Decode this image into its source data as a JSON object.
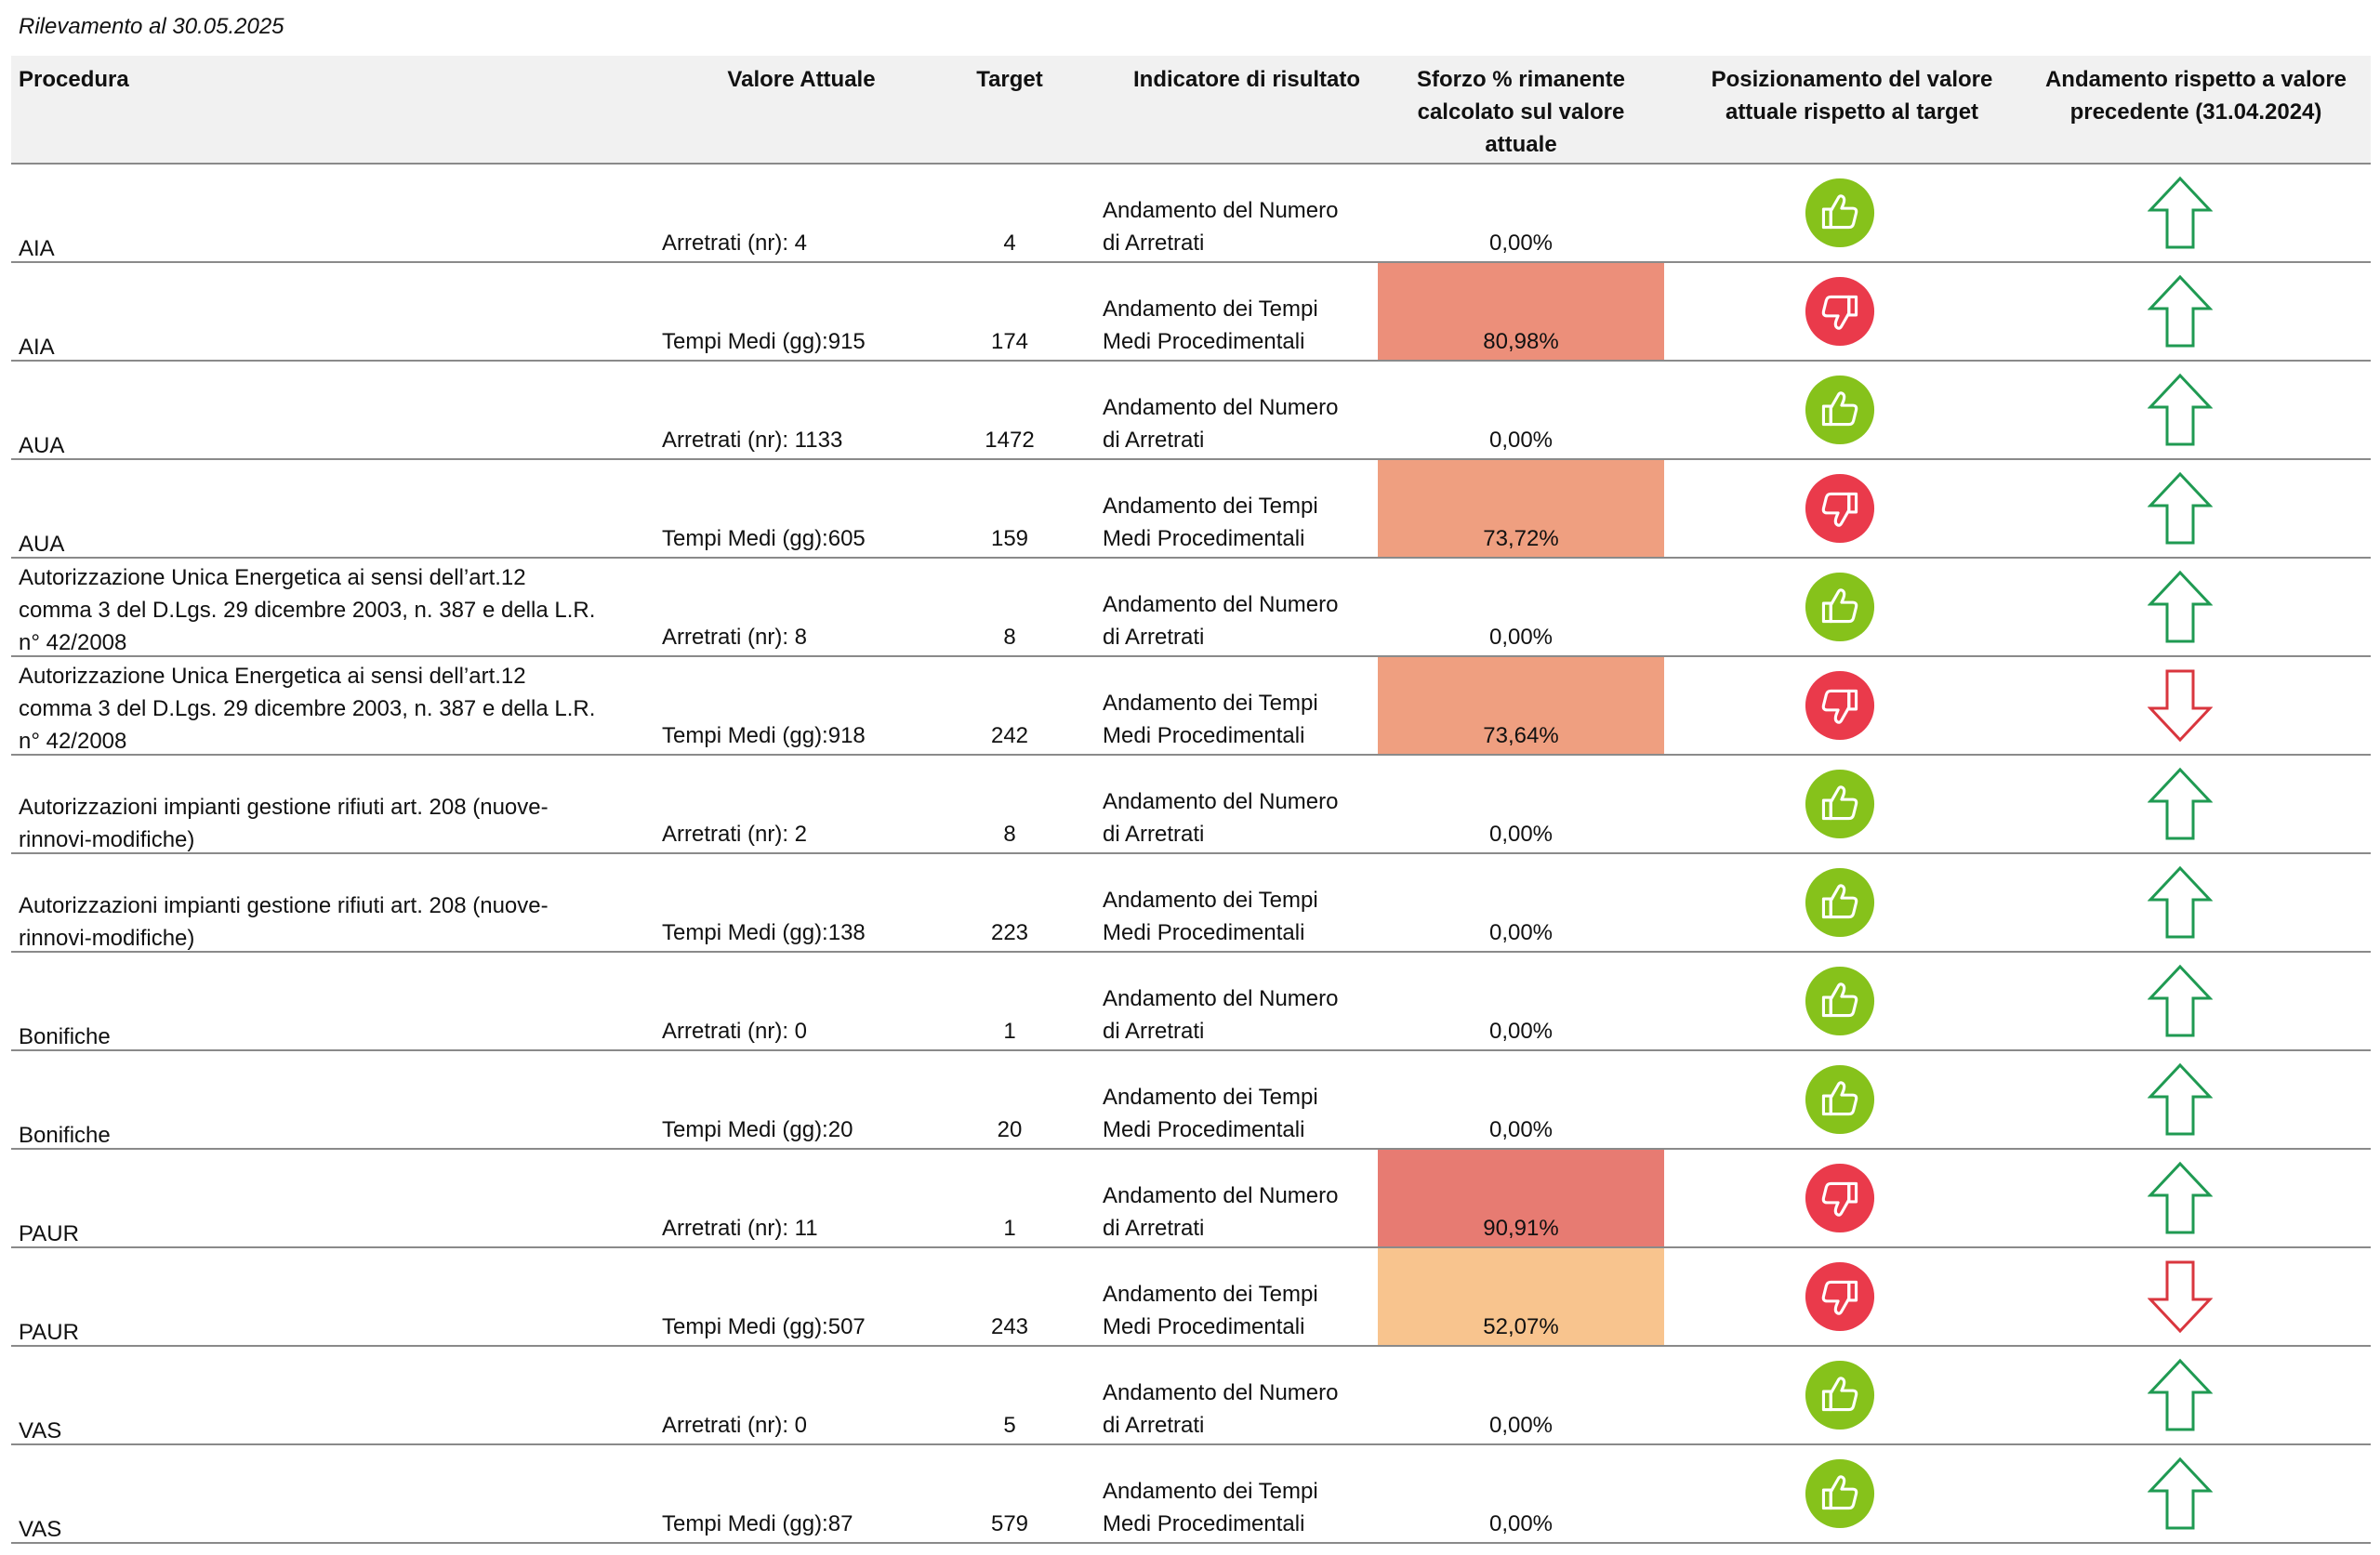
{
  "caption": "Rilevamento al 30.05.2025",
  "headers": {
    "procedura": "Procedura",
    "valore_attuale": "Valore Attuale",
    "target": "Target",
    "indicatore": "Indicatore di risultato",
    "sforzo": [
      "Sforzo % rimanente",
      "calcolato sul valore",
      "attuale"
    ],
    "posizionamento": [
      "Posizionamento del valore",
      "attuale rispetto al target"
    ],
    "andamento": [
      "Andamento rispetto a valore",
      "precedente (31.04.2024)"
    ]
  },
  "colors": {
    "good": "#86c21b",
    "bad": "#ea3a4b",
    "arrow_up": "#1f9a52",
    "arrow_down": "#d9363e"
  },
  "rows": [
    {
      "procedura": [
        "AIA"
      ],
      "valore": "Arretrati (nr): 4",
      "target": "4",
      "indicatore": [
        "Andamento del Numero",
        "di Arretrati"
      ],
      "sforzo": "0,00%",
      "sforzo_color": "",
      "positioning": "thumb-up-icon",
      "trend": "arrow-up-icon"
    },
    {
      "procedura": [
        "AIA"
      ],
      "valore": "Tempi Medi (gg):915",
      "target": "174",
      "indicatore": [
        "Andamento dei Tempi",
        "Medi Procedimentali"
      ],
      "sforzo": "80,98%",
      "sforzo_color": "#ec8f7a",
      "positioning": "thumb-down-icon",
      "trend": "arrow-up-icon"
    },
    {
      "procedura": [
        "AUA"
      ],
      "valore": "Arretrati (nr): 1133",
      "target": "1472",
      "indicatore": [
        "Andamento del Numero",
        "di Arretrati"
      ],
      "sforzo": "0,00%",
      "sforzo_color": "",
      "positioning": "thumb-up-icon",
      "trend": "arrow-up-icon"
    },
    {
      "procedura": [
        "AUA"
      ],
      "valore": "Tempi Medi (gg):605",
      "target": "159",
      "indicatore": [
        "Andamento dei Tempi",
        "Medi Procedimentali"
      ],
      "sforzo": "73,72%",
      "sforzo_color": "#ef9f80",
      "positioning": "thumb-down-icon",
      "trend": "arrow-up-icon"
    },
    {
      "procedura": [
        "Autorizzazione Unica Energetica ai sensi dell’art.12",
        "comma 3 del D.Lgs. 29 dicembre 2003, n. 387 e della L.R.",
        "n° 42/2008"
      ],
      "valore": "Arretrati (nr): 8",
      "target": "8",
      "indicatore": [
        "Andamento del Numero",
        "di Arretrati"
      ],
      "sforzo": "0,00%",
      "sforzo_color": "",
      "positioning": "thumb-up-icon",
      "trend": "arrow-up-icon"
    },
    {
      "procedura": [
        "Autorizzazione Unica Energetica ai sensi dell’art.12",
        "comma 3 del D.Lgs. 29 dicembre 2003, n. 387 e della L.R.",
        "n° 42/2008"
      ],
      "valore": "Tempi Medi (gg):918",
      "target": "242",
      "indicatore": [
        "Andamento dei Tempi",
        "Medi Procedimentali"
      ],
      "sforzo": "73,64%",
      "sforzo_color": "#ef9f80",
      "positioning": "thumb-down-icon",
      "trend": "arrow-down-icon"
    },
    {
      "procedura": [
        "Autorizzazioni impianti gestione rifiuti art. 208 (nuove-",
        "rinnovi-modifiche)"
      ],
      "valore": "Arretrati (nr): 2",
      "target": "8",
      "indicatore": [
        "Andamento del Numero",
        "di Arretrati"
      ],
      "sforzo": "0,00%",
      "sforzo_color": "",
      "positioning": "thumb-up-icon",
      "trend": "arrow-up-icon"
    },
    {
      "procedura": [
        "Autorizzazioni impianti gestione rifiuti art. 208 (nuove-",
        "rinnovi-modifiche)"
      ],
      "valore": "Tempi Medi (gg):138",
      "target": "223",
      "indicatore": [
        "Andamento dei Tempi",
        "Medi Procedimentali"
      ],
      "sforzo": "0,00%",
      "sforzo_color": "",
      "positioning": "thumb-up-icon",
      "trend": "arrow-up-icon"
    },
    {
      "procedura": [
        "Bonifiche"
      ],
      "valore": "Arretrati (nr): 0",
      "target": "1",
      "indicatore": [
        "Andamento del Numero",
        "di Arretrati"
      ],
      "sforzo": "0,00%",
      "sforzo_color": "",
      "positioning": "thumb-up-icon",
      "trend": "arrow-up-icon"
    },
    {
      "procedura": [
        "Bonifiche"
      ],
      "valore": "Tempi Medi (gg):20",
      "target": "20",
      "indicatore": [
        "Andamento dei Tempi",
        "Medi Procedimentali"
      ],
      "sforzo": "0,00%",
      "sforzo_color": "",
      "positioning": "thumb-up-icon",
      "trend": "arrow-up-icon"
    },
    {
      "procedura": [
        "PAUR"
      ],
      "valore": "Arretrati (nr): 11",
      "target": "1",
      "indicatore": [
        "Andamento del Numero",
        "di Arretrati"
      ],
      "sforzo": "90,91%",
      "sforzo_color": "#e77b72",
      "positioning": "thumb-down-icon",
      "trend": "arrow-up-icon"
    },
    {
      "procedura": [
        "PAUR"
      ],
      "valore": "Tempi Medi (gg):507",
      "target": "243",
      "indicatore": [
        "Andamento dei Tempi",
        "Medi Procedimentali"
      ],
      "sforzo": "52,07%",
      "sforzo_color": "#f8c48e",
      "positioning": "thumb-down-icon",
      "trend": "arrow-down-icon"
    },
    {
      "procedura": [
        "VAS"
      ],
      "valore": "Arretrati (nr): 0",
      "target": "5",
      "indicatore": [
        "Andamento del Numero",
        "di Arretrati"
      ],
      "sforzo": "0,00%",
      "sforzo_color": "",
      "positioning": "thumb-up-icon",
      "trend": "arrow-up-icon"
    },
    {
      "procedura": [
        "VAS"
      ],
      "valore": "Tempi Medi (gg):87",
      "target": "579",
      "indicatore": [
        "Andamento dei Tempi",
        "Medi Procedimentali"
      ],
      "sforzo": "0,00%",
      "sforzo_color": "",
      "positioning": "thumb-up-icon",
      "trend": "arrow-up-icon"
    }
  ]
}
